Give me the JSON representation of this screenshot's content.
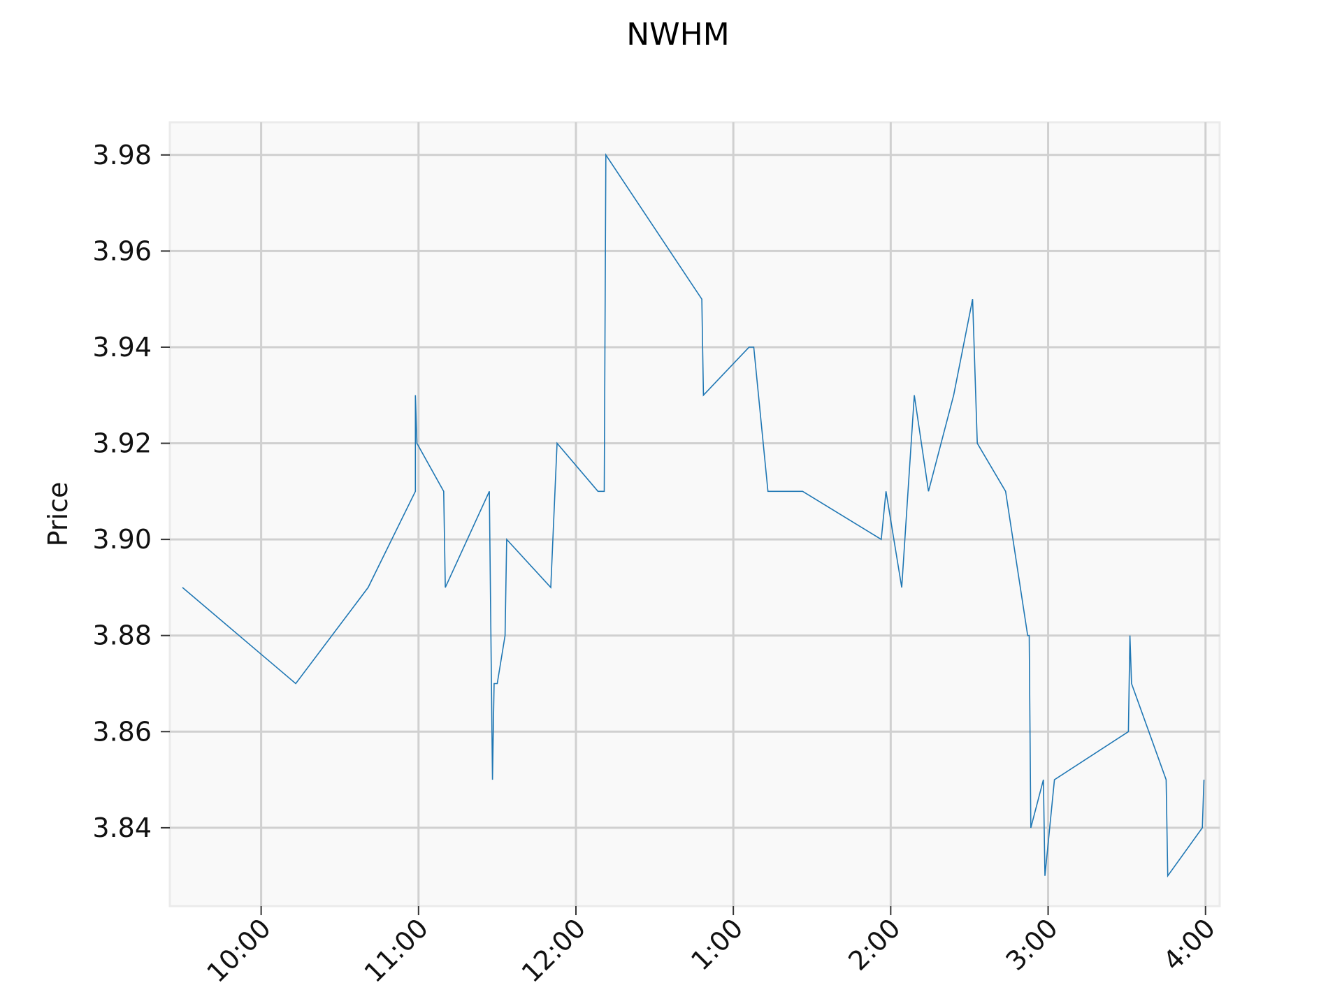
{
  "chart_data": {
    "type": "line",
    "title": "NWHM",
    "xlabel": "",
    "ylabel": "Price",
    "x_unit": "hours after 9:00",
    "xlim": [
      0.42,
      7.09
    ],
    "ylim": [
      3.8237,
      3.9868
    ],
    "x_ticks": [
      {
        "value": 1,
        "label": "10:00"
      },
      {
        "value": 2,
        "label": "11:00"
      },
      {
        "value": 3,
        "label": "12:00"
      },
      {
        "value": 4,
        "label": "1:00"
      },
      {
        "value": 5,
        "label": "2:00"
      },
      {
        "value": 6,
        "label": "3:00"
      },
      {
        "value": 7,
        "label": "4:00"
      }
    ],
    "y_ticks": [
      {
        "value": 3.84,
        "label": "3.84"
      },
      {
        "value": 3.86,
        "label": "3.86"
      },
      {
        "value": 3.88,
        "label": "3.88"
      },
      {
        "value": 3.9,
        "label": "3.90"
      },
      {
        "value": 3.92,
        "label": "3.92"
      },
      {
        "value": 3.94,
        "label": "3.94"
      },
      {
        "value": 3.96,
        "label": "3.96"
      },
      {
        "value": 3.98,
        "label": "3.98"
      }
    ],
    "grid": true,
    "series": [
      {
        "color": "#1f77b4",
        "points": [
          [
            0.5,
            3.89
          ],
          [
            1.22,
            3.87
          ],
          [
            1.68,
            3.89
          ],
          [
            1.98,
            3.91
          ],
          [
            1.98,
            3.93
          ],
          [
            1.99,
            3.92
          ],
          [
            2.16,
            3.91
          ],
          [
            2.17,
            3.89
          ],
          [
            2.45,
            3.91
          ],
          [
            2.47,
            3.85
          ],
          [
            2.48,
            3.87
          ],
          [
            2.5,
            3.87
          ],
          [
            2.55,
            3.88
          ],
          [
            2.56,
            3.9
          ],
          [
            2.84,
            3.89
          ],
          [
            2.88,
            3.92
          ],
          [
            3.14,
            3.91
          ],
          [
            3.18,
            3.91
          ],
          [
            3.19,
            3.98
          ],
          [
            3.8,
            3.95
          ],
          [
            3.81,
            3.93
          ],
          [
            4.1,
            3.94
          ],
          [
            4.13,
            3.94
          ],
          [
            4.22,
            3.91
          ],
          [
            4.44,
            3.91
          ],
          [
            4.94,
            3.9
          ],
          [
            4.97,
            3.91
          ],
          [
            5.07,
            3.89
          ],
          [
            5.15,
            3.93
          ],
          [
            5.24,
            3.91
          ],
          [
            5.4,
            3.93
          ],
          [
            5.52,
            3.95
          ],
          [
            5.55,
            3.92
          ],
          [
            5.73,
            3.91
          ],
          [
            5.87,
            3.88
          ],
          [
            5.88,
            3.88
          ],
          [
            5.89,
            3.84
          ],
          [
            5.97,
            3.85
          ],
          [
            5.98,
            3.83
          ],
          [
            6.04,
            3.85
          ],
          [
            6.51,
            3.86
          ],
          [
            6.52,
            3.88
          ],
          [
            6.53,
            3.87
          ],
          [
            6.75,
            3.85
          ],
          [
            6.76,
            3.83
          ],
          [
            6.98,
            3.84
          ],
          [
            6.99,
            3.85
          ]
        ]
      }
    ]
  }
}
